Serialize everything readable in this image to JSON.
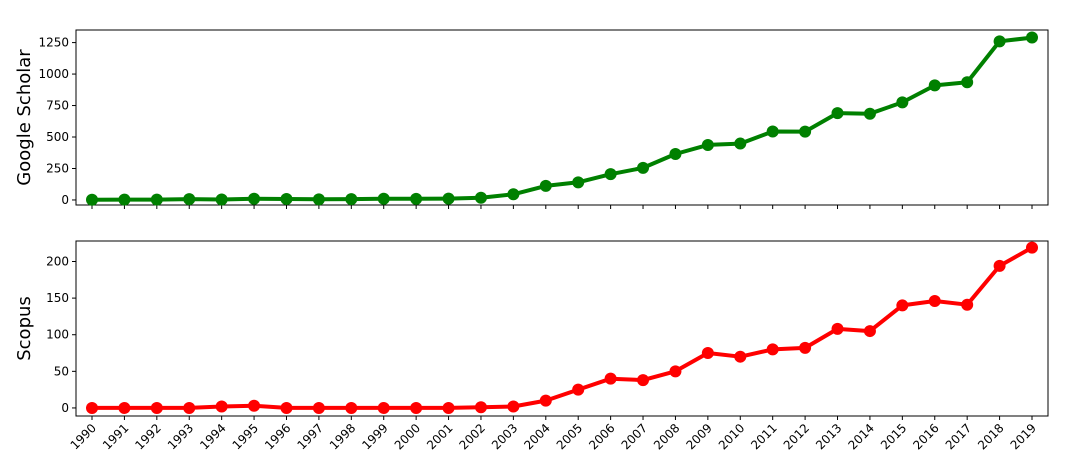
{
  "chart_data": [
    {
      "type": "line",
      "ylabel": "Google Scholar",
      "color": "#008000",
      "x": [
        "1990",
        "1991",
        "1992",
        "1993",
        "1994",
        "1995",
        "1996",
        "1997",
        "1998",
        "1999",
        "2000",
        "2001",
        "2002",
        "2003",
        "2004",
        "2005",
        "2006",
        "2007",
        "2008",
        "2009",
        "2010",
        "2011",
        "2012",
        "2013",
        "2014",
        "2015",
        "2016",
        "2017",
        "2018",
        "2019"
      ],
      "values": [
        2,
        3,
        3,
        7,
        4,
        10,
        8,
        5,
        7,
        10,
        9,
        11,
        18,
        45,
        112,
        140,
        205,
        255,
        365,
        437,
        448,
        544,
        543,
        690,
        685,
        775,
        910,
        935,
        1260,
        1290
      ],
      "ylim": [
        -40,
        1350
      ],
      "yticks": [
        0,
        250,
        500,
        750,
        1000,
        1250
      ],
      "grid": false,
      "xtick_labels_visible": false
    },
    {
      "type": "line",
      "ylabel": "Scopus",
      "color": "#ff0000",
      "x": [
        "1990",
        "1991",
        "1992",
        "1993",
        "1994",
        "1995",
        "1996",
        "1997",
        "1998",
        "1999",
        "2000",
        "2001",
        "2002",
        "2003",
        "2004",
        "2005",
        "2006",
        "2007",
        "2008",
        "2009",
        "2010",
        "2011",
        "2012",
        "2013",
        "2014",
        "2015",
        "2016",
        "2017",
        "2018",
        "2019"
      ],
      "values": [
        0,
        0,
        0,
        0,
        2,
        3,
        0,
        0,
        0,
        0,
        0,
        0,
        1,
        2,
        10,
        25,
        40,
        38,
        50,
        75,
        70,
        80,
        82,
        108,
        105,
        140,
        146,
        141,
        194,
        219
      ],
      "ylim": [
        -11,
        228
      ],
      "yticks": [
        0,
        50,
        100,
        150,
        200
      ],
      "grid": false,
      "xtick_labels_visible": true
    }
  ]
}
